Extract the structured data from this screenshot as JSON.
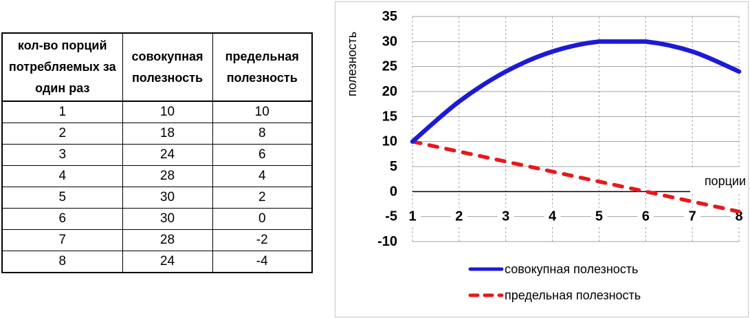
{
  "table": {
    "headers": [
      "кол-во порций потребляемых за один раз",
      "совокупная полезность",
      "предельная полезность"
    ],
    "rows": [
      [
        "1",
        "10",
        "10"
      ],
      [
        "2",
        "18",
        "8"
      ],
      [
        "3",
        "24",
        "6"
      ],
      [
        "4",
        "28",
        "4"
      ],
      [
        "5",
        "30",
        "2"
      ],
      [
        "6",
        "30",
        "0"
      ],
      [
        "7",
        "28",
        "-2"
      ],
      [
        "8",
        "24",
        "-4"
      ]
    ]
  },
  "chart_data": {
    "type": "line",
    "x": [
      1,
      2,
      3,
      4,
      5,
      6,
      7,
      8
    ],
    "xlabel": "порции",
    "ylabel": "полезность",
    "ylim": [
      -10,
      35
    ],
    "ytick_step": 5,
    "grid": true,
    "legend_position": "bottom",
    "x_tick_row_value": -5,
    "axis_cross_y": 0,
    "series": [
      {
        "name": "совокупная полезность",
        "values": [
          10,
          18,
          24,
          28,
          30,
          30,
          28,
          24
        ],
        "color": "#1c1ad6",
        "style": "solid",
        "smooth": true
      },
      {
        "name": "предельная полезность",
        "values": [
          10,
          8,
          6,
          4,
          2,
          0,
          -2,
          -4
        ],
        "color": "#e7191c",
        "style": "dashed",
        "smooth": false
      }
    ],
    "colors": {
      "grid": "#a3a3a3",
      "axis": "#000000",
      "text": "#000000",
      "chart_border": "#c6c6c6"
    }
  }
}
